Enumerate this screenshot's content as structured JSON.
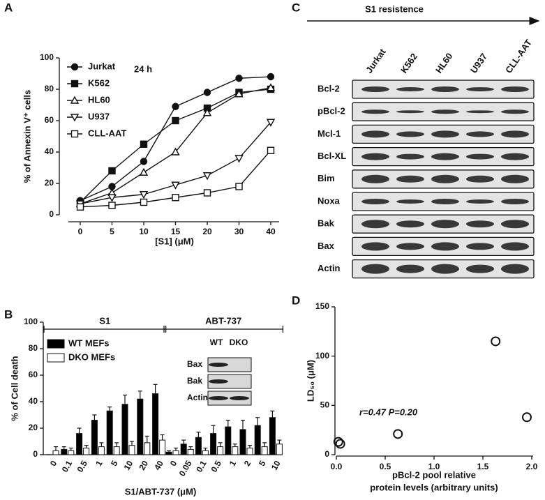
{
  "panel_labels": [
    "A",
    "B",
    "C",
    "D"
  ],
  "chart_data": [
    {
      "type": "line",
      "annotation": "24 h",
      "x_label": "[S1] (μM)",
      "y_label": "% of Annexin V⁺ cells",
      "categories": [
        "0",
        "5",
        "10",
        "15",
        "20",
        "30",
        "40"
      ],
      "ylim": [
        0,
        100
      ],
      "yticks": [
        0,
        20,
        40,
        60,
        80,
        100
      ],
      "series": [
        {
          "name": "Jurkat",
          "marker": "circle",
          "filled": true,
          "color": "#111111",
          "values": [
            9,
            18,
            34,
            69,
            78,
            87,
            88
          ]
        },
        {
          "name": "K562",
          "marker": "square",
          "filled": true,
          "color": "#111111",
          "values": [
            8,
            28,
            45,
            60,
            68,
            78,
            80
          ]
        },
        {
          "name": "HL60",
          "marker": "triangle",
          "filled": false,
          "color": "#111111",
          "values": [
            7,
            14,
            27,
            40,
            65,
            77,
            81
          ]
        },
        {
          "name": "U937",
          "marker": "triangle-down",
          "filled": false,
          "color": "#111111",
          "values": [
            7,
            11,
            13,
            19,
            25,
            36,
            59
          ]
        },
        {
          "name": "CLL-AAT",
          "marker": "square",
          "filled": false,
          "color": "#111111",
          "values": [
            5,
            6,
            8,
            11,
            14,
            18,
            41
          ]
        }
      ]
    },
    {
      "type": "bar",
      "x_label": "S1/ABT-737 (μM)",
      "y_label": "% of Cell death",
      "groups": [
        {
          "name": "S1",
          "from": 0,
          "to": 7
        },
        {
          "name": "ABT-737",
          "from": 8,
          "to": 15
        }
      ],
      "categories": [
        "0",
        "0.1",
        "0.5",
        "1",
        "5",
        "10",
        "20",
        "40",
        "0",
        "0.05",
        "0.1",
        "0.5",
        "1",
        "2",
        "5",
        "10"
      ],
      "ylim": [
        0,
        100
      ],
      "yticks": [
        0,
        20,
        40,
        60,
        80,
        100
      ],
      "series": [
        {
          "name": "WT MEFs",
          "color": "#000000",
          "values": [
            0,
            4,
            16,
            26,
            33,
            38,
            42,
            46,
            2,
            8,
            13,
            16,
            21,
            19,
            22,
            28
          ],
          "errors": [
            0,
            2,
            4,
            4,
            3,
            7,
            6,
            7,
            1,
            3,
            4,
            6,
            5,
            7,
            6,
            5
          ]
        },
        {
          "name": "DKO MEFs",
          "color": "#ffffff",
          "values": [
            3,
            3,
            5,
            6,
            6,
            7,
            9,
            11,
            3,
            4,
            3,
            6,
            6,
            5,
            6,
            8
          ],
          "errors": [
            3,
            2,
            2,
            3,
            3,
            3,
            5,
            4,
            2,
            2,
            2,
            3,
            2,
            2,
            3,
            3
          ]
        }
      ]
    },
    {
      "type": "scatter",
      "annotation": "r=0.47  P=0.20",
      "x_label": [
        "pBcl-2 pool relative",
        "protein levels (arbitrary units)"
      ],
      "y_label": "LD₅₀ (μM)",
      "x": [
        0.02,
        0.04,
        0.63,
        1.63,
        1.95
      ],
      "values": [
        13,
        11,
        21,
        115,
        38
      ],
      "xlim": [
        0,
        2
      ],
      "xticks": [
        {
          "value": 0,
          "label": "0.0"
        },
        {
          "value": 0.5,
          "label": "0.5"
        },
        {
          "value": 1,
          "label": "1.0"
        },
        {
          "value": 1.5,
          "label": "1.5"
        },
        {
          "value": 2,
          "label": "2.0"
        }
      ],
      "ylim": [
        0,
        150
      ],
      "yticks": [
        0,
        50,
        100,
        150
      ]
    }
  ],
  "blot_b": {
    "columns": [
      "WT",
      "DKO"
    ],
    "rows": [
      "Bax",
      "Bak",
      "Actin"
    ]
  },
  "blot_c": {
    "title": "S1 resistence",
    "lanes": [
      "Jurkat",
      "K562",
      "HL60",
      "U937",
      "CLL-AAT"
    ],
    "rows": [
      "Bcl-2",
      "pBcl-2",
      "Mcl-1",
      "Bcl-XL",
      "Bim",
      "Noxa",
      "Bak",
      "Bax",
      "Actin"
    ]
  }
}
